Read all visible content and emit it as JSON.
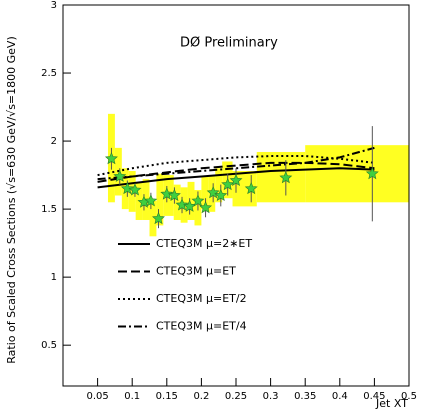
{
  "chart_data": {
    "type": "scatter",
    "annotation": "DØ Preliminary",
    "x_label": "Jet XT",
    "y_label": "Ratio of Scaled Cross Sections (√s=630 GeV/√s=1800 GeV)",
    "xlim": [
      0,
      0.5
    ],
    "ylim": [
      0.2,
      3
    ],
    "xticks": [
      0.05,
      0.1,
      0.15,
      0.2,
      0.25,
      0.3,
      0.35,
      0.4,
      0.45,
      0.5
    ],
    "yticks": [
      0.5,
      1,
      1.5,
      2,
      2.5,
      3
    ],
    "points": {
      "color": "#3fcf3f",
      "x": [
        0.07,
        0.082,
        0.093,
        0.104,
        0.117,
        0.127,
        0.138,
        0.15,
        0.161,
        0.172,
        0.183,
        0.195,
        0.206,
        0.217,
        0.228,
        0.238,
        0.25,
        0.272,
        0.322,
        0.447
      ],
      "values": [
        1.87,
        1.74,
        1.65,
        1.64,
        1.55,
        1.56,
        1.43,
        1.61,
        1.6,
        1.53,
        1.52,
        1.56,
        1.51,
        1.62,
        1.6,
        1.68,
        1.71,
        1.65,
        1.73,
        1.76
      ],
      "errors": [
        0.08,
        0.06,
        0.06,
        0.05,
        0.06,
        0.06,
        0.07,
        0.06,
        0.06,
        0.06,
        0.06,
        0.07,
        0.07,
        0.07,
        0.08,
        0.08,
        0.09,
        0.1,
        0.13,
        0.35
      ]
    },
    "band": {
      "color": "#ffff22",
      "x0": [
        0.065,
        0.075,
        0.085,
        0.095,
        0.105,
        0.115,
        0.125,
        0.135,
        0.145,
        0.16,
        0.17,
        0.18,
        0.19,
        0.2,
        0.21,
        0.22,
        0.23,
        0.245,
        0.28,
        0.35
      ],
      "x1": [
        0.075,
        0.085,
        0.095,
        0.105,
        0.115,
        0.125,
        0.135,
        0.145,
        0.16,
        0.17,
        0.18,
        0.19,
        0.2,
        0.21,
        0.22,
        0.23,
        0.245,
        0.28,
        0.35,
        0.5
      ],
      "low": [
        1.55,
        1.6,
        1.5,
        1.48,
        1.42,
        1.42,
        1.3,
        1.38,
        1.45,
        1.42,
        1.4,
        1.42,
        1.38,
        1.5,
        1.48,
        1.55,
        1.58,
        1.52,
        1.55,
        1.55
      ],
      "high": [
        2.2,
        1.95,
        1.8,
        1.78,
        1.7,
        1.72,
        1.56,
        1.76,
        1.75,
        1.68,
        1.66,
        1.7,
        1.64,
        1.74,
        1.74,
        1.8,
        1.85,
        1.78,
        1.92,
        1.97
      ]
    },
    "curves_x": [
      0.05,
      0.1,
      0.15,
      0.2,
      0.25,
      0.3,
      0.35,
      0.4,
      0.45
    ],
    "series": [
      {
        "name": "CTEQ3M μ=2∗ET",
        "dash": "solid",
        "values": [
          1.66,
          1.69,
          1.72,
          1.74,
          1.76,
          1.78,
          1.79,
          1.8,
          1.79
        ]
      },
      {
        "name": "CTEQ3M μ=ET",
        "dash": "dashed",
        "values": [
          1.7,
          1.74,
          1.77,
          1.8,
          1.82,
          1.84,
          1.84,
          1.83,
          1.8
        ]
      },
      {
        "name": "CTEQ3M μ=ET/2",
        "dash": "dotted",
        "values": [
          1.75,
          1.8,
          1.84,
          1.86,
          1.88,
          1.89,
          1.89,
          1.87,
          1.84
        ]
      },
      {
        "name": "CTEQ3M μ=ET/4",
        "dash": "dashdot",
        "values": [
          1.72,
          1.74,
          1.76,
          1.78,
          1.8,
          1.82,
          1.84,
          1.88,
          1.95
        ]
      }
    ]
  }
}
